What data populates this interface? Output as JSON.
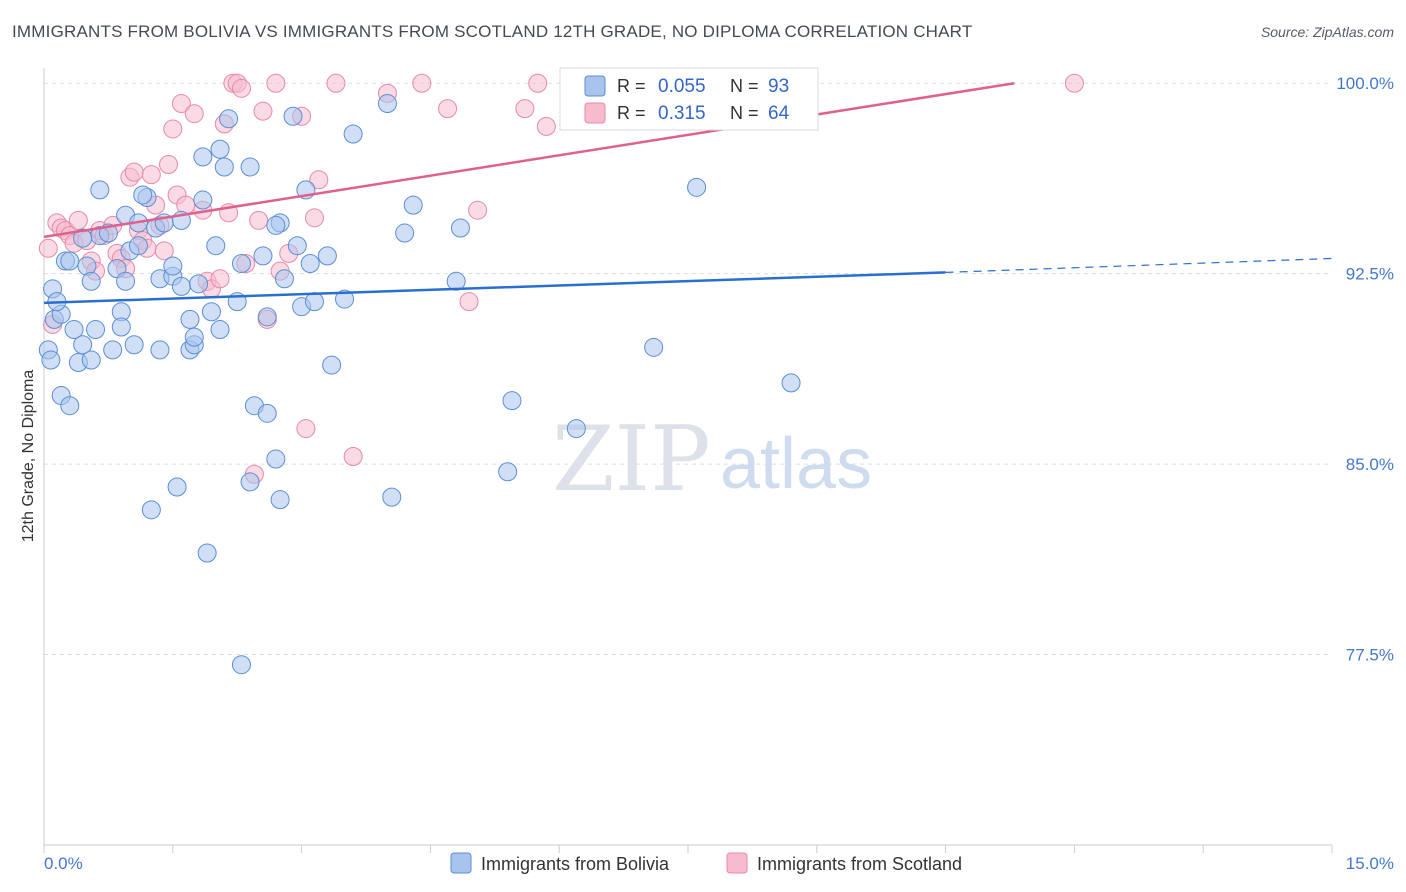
{
  "header": {
    "title": "IMMIGRANTS FROM BOLIVIA VS IMMIGRANTS FROM SCOTLAND 12TH GRADE, NO DIPLOMA CORRELATION CHART",
    "source": "Source: ZipAtlas.com"
  },
  "watermark": {
    "zip": "ZIP",
    "atlas": "atlas"
  },
  "colors": {
    "bolivia_fill": "#a9c4ec",
    "bolivia_stroke": "#5b8ed6",
    "bolivia_line": "#2a6fcf",
    "scotland_fill": "#f6bccd",
    "scotland_stroke": "#e889a8",
    "scotland_line": "#e0608c",
    "tick_label": "#4477cc"
  },
  "legend": {
    "r_label": "R =",
    "n_label": "N =",
    "bolivia": {
      "r": "0.055",
      "n": "93"
    },
    "scotland": {
      "r": "0.315",
      "n": "64"
    }
  },
  "bottom_legend": {
    "bolivia": "Immigrants from Bolivia",
    "scotland": "Immigrants from Scotland"
  },
  "chart_data": {
    "type": "scatter",
    "title": "IMMIGRANTS FROM BOLIVIA VS IMMIGRANTS FROM SCOTLAND 12TH GRADE, NO DIPLOMA CORRELATION CHART",
    "xlabel": "",
    "ylabel": "12th Grade, No Diploma",
    "xlim": [
      0,
      15
    ],
    "ylim": [
      70,
      100.6
    ],
    "x_tick_labels": [
      "0.0%",
      "15.0%"
    ],
    "y_ticks": [
      {
        "value": 100,
        "label": "100.0%"
      },
      {
        "value": 92.5,
        "label": "92.5%"
      },
      {
        "value": 85,
        "label": "85.0%"
      },
      {
        "value": 77.5,
        "label": "77.5%"
      }
    ],
    "grid": "horizontal dashed",
    "legend_position": "top-center",
    "series": [
      {
        "name": "Immigrants from Bolivia",
        "r": 0.055,
        "n": 93,
        "trend": {
          "x": [
            0,
            10.5
          ],
          "y": [
            91.35,
            92.55
          ],
          "extended_to": [
            15,
            93.1
          ]
        },
        "points": [
          [
            0.05,
            89.5
          ],
          [
            0.08,
            89.1
          ],
          [
            0.1,
            91.9
          ],
          [
            0.12,
            90.7
          ],
          [
            0.2,
            90.9
          ],
          [
            0.2,
            87.7
          ],
          [
            0.25,
            93.0
          ],
          [
            0.3,
            87.3
          ],
          [
            0.3,
            93.0
          ],
          [
            0.35,
            90.3
          ],
          [
            0.4,
            89.0
          ],
          [
            0.45,
            89.7
          ],
          [
            0.5,
            92.8
          ],
          [
            0.55,
            89.1
          ],
          [
            0.55,
            92.2
          ],
          [
            0.6,
            90.3
          ],
          [
            0.65,
            94.0
          ],
          [
            0.65,
            95.8
          ],
          [
            0.75,
            94.1
          ],
          [
            0.8,
            89.5
          ],
          [
            0.85,
            92.7
          ],
          [
            0.9,
            91.0
          ],
          [
            0.9,
            90.4
          ],
          [
            0.95,
            92.2
          ],
          [
            0.95,
            94.8
          ],
          [
            1.0,
            93.4
          ],
          [
            1.05,
            89.7
          ],
          [
            1.1,
            93.6
          ],
          [
            1.1,
            94.5
          ],
          [
            1.2,
            95.5
          ],
          [
            1.25,
            83.2
          ],
          [
            1.3,
            94.3
          ],
          [
            1.35,
            92.3
          ],
          [
            1.35,
            89.5
          ],
          [
            1.4,
            94.5
          ],
          [
            1.5,
            92.4
          ],
          [
            1.55,
            84.1
          ],
          [
            1.6,
            92.0
          ],
          [
            1.6,
            94.6
          ],
          [
            1.7,
            90.7
          ],
          [
            1.7,
            89.5
          ],
          [
            1.75,
            89.7
          ],
          [
            1.75,
            90.0
          ],
          [
            1.8,
            92.1
          ],
          [
            1.85,
            97.1
          ],
          [
            1.85,
            95.4
          ],
          [
            1.9,
            81.5
          ],
          [
            1.95,
            91.0
          ],
          [
            2.0,
            93.6
          ],
          [
            2.05,
            90.3
          ],
          [
            2.05,
            97.4
          ],
          [
            2.1,
            96.7
          ],
          [
            2.15,
            98.6
          ],
          [
            2.25,
            91.4
          ],
          [
            2.3,
            92.9
          ],
          [
            2.3,
            77.1
          ],
          [
            2.4,
            84.3
          ],
          [
            2.4,
            96.7
          ],
          [
            2.45,
            87.3
          ],
          [
            2.55,
            93.2
          ],
          [
            2.6,
            87.0
          ],
          [
            2.6,
            90.8
          ],
          [
            2.7,
            85.2
          ],
          [
            2.75,
            83.6
          ],
          [
            2.75,
            94.5
          ],
          [
            2.8,
            92.3
          ],
          [
            2.9,
            98.7
          ],
          [
            2.95,
            93.6
          ],
          [
            3.0,
            91.2
          ],
          [
            3.05,
            95.8
          ],
          [
            3.1,
            92.9
          ],
          [
            3.15,
            91.4
          ],
          [
            3.3,
            93.2
          ],
          [
            3.35,
            88.9
          ],
          [
            3.5,
            91.5
          ],
          [
            3.6,
            98.0
          ],
          [
            4.0,
            99.2
          ],
          [
            4.05,
            83.7
          ],
          [
            4.2,
            94.1
          ],
          [
            4.3,
            95.2
          ],
          [
            4.8,
            92.2
          ],
          [
            4.85,
            94.3
          ],
          [
            5.4,
            84.7
          ],
          [
            5.45,
            87.5
          ],
          [
            6.2,
            86.4
          ],
          [
            7.1,
            89.6
          ],
          [
            7.6,
            95.9
          ],
          [
            8.7,
            88.2
          ],
          [
            0.15,
            91.4
          ],
          [
            0.45,
            93.9
          ],
          [
            1.15,
            95.6
          ],
          [
            1.5,
            92.8
          ],
          [
            2.7,
            94.4
          ]
        ]
      },
      {
        "name": "Immigrants from Scotland",
        "r": 0.315,
        "n": 64,
        "trend": {
          "x": [
            0,
            11.3
          ],
          "y": [
            93.95,
            100.0
          ]
        },
        "points": [
          [
            0.05,
            93.5
          ],
          [
            0.1,
            90.5
          ],
          [
            0.15,
            94.5
          ],
          [
            0.2,
            94.3
          ],
          [
            0.25,
            94.2
          ],
          [
            0.3,
            94.0
          ],
          [
            0.35,
            93.7
          ],
          [
            0.4,
            94.6
          ],
          [
            0.5,
            93.8
          ],
          [
            0.55,
            93.0
          ],
          [
            0.6,
            92.6
          ],
          [
            0.65,
            94.2
          ],
          [
            0.7,
            94.0
          ],
          [
            0.8,
            94.4
          ],
          [
            0.85,
            93.3
          ],
          [
            0.9,
            93.1
          ],
          [
            0.95,
            92.7
          ],
          [
            1.0,
            96.3
          ],
          [
            1.05,
            96.5
          ],
          [
            1.1,
            94.2
          ],
          [
            1.15,
            93.8
          ],
          [
            1.2,
            93.5
          ],
          [
            1.25,
            96.4
          ],
          [
            1.3,
            95.2
          ],
          [
            1.35,
            94.4
          ],
          [
            1.4,
            93.4
          ],
          [
            1.45,
            96.8
          ],
          [
            1.5,
            98.2
          ],
          [
            1.55,
            95.6
          ],
          [
            1.6,
            99.2
          ],
          [
            1.65,
            95.2
          ],
          [
            1.75,
            98.8
          ],
          [
            1.85,
            95.0
          ],
          [
            1.9,
            92.2
          ],
          [
            1.95,
            91.9
          ],
          [
            2.05,
            92.3
          ],
          [
            2.1,
            98.4
          ],
          [
            2.15,
            94.9
          ],
          [
            2.2,
            100.0
          ],
          [
            2.25,
            100.0
          ],
          [
            2.3,
            99.8
          ],
          [
            2.35,
            92.9
          ],
          [
            2.45,
            84.6
          ],
          [
            2.5,
            94.6
          ],
          [
            2.55,
            98.9
          ],
          [
            2.6,
            90.7
          ],
          [
            2.7,
            100.0
          ],
          [
            2.75,
            92.6
          ],
          [
            2.85,
            93.3
          ],
          [
            3.0,
            98.7
          ],
          [
            3.05,
            86.4
          ],
          [
            3.15,
            94.7
          ],
          [
            3.2,
            96.2
          ],
          [
            3.4,
            100.0
          ],
          [
            3.6,
            85.3
          ],
          [
            4.0,
            99.6
          ],
          [
            4.4,
            100.0
          ],
          [
            4.7,
            99.0
          ],
          [
            4.95,
            91.4
          ],
          [
            5.05,
            95.0
          ],
          [
            5.6,
            99.0
          ],
          [
            5.75,
            100.0
          ],
          [
            5.85,
            98.3
          ],
          [
            12.0,
            100.0
          ]
        ]
      }
    ]
  }
}
